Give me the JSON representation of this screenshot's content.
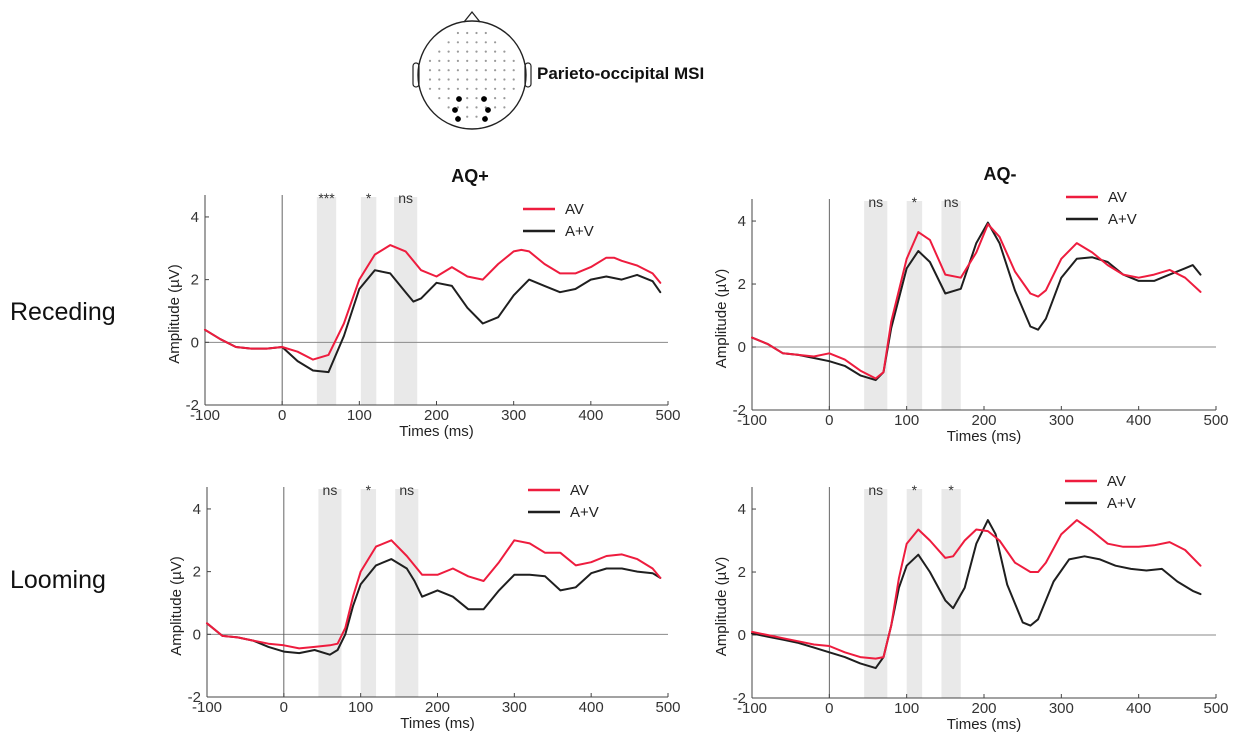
{
  "figure_title": "Parieto-occipital MSI",
  "column_titles": [
    "AQ+",
    "AQ-"
  ],
  "row_labels": [
    "Receding",
    "Looming"
  ],
  "colors": {
    "AV": "#ee1c3e",
    "A+V": "#1f1f1f",
    "window": "#e3e3e3",
    "baseline": "#8a8a8a"
  },
  "chart_data": [
    {
      "type": "line",
      "group": "AQ+",
      "condition": "Receding",
      "xlabel": "Times (ms)",
      "ylabel": "Amplitude (µV)",
      "xlim": [
        -100,
        500
      ],
      "ylim": [
        -2,
        4.7
      ],
      "xticks": [
        -100,
        0,
        100,
        200,
        300,
        400,
        500
      ],
      "yticks": [
        -2,
        0,
        2,
        4
      ],
      "windows": [
        {
          "x0": 45,
          "x1": 70,
          "label": "***"
        },
        {
          "x0": 102,
          "x1": 122,
          "label": "*"
        },
        {
          "x0": 145,
          "x1": 175,
          "label": "ns"
        }
      ],
      "legend": [
        "AV",
        "A+V"
      ],
      "series": [
        {
          "name": "AV",
          "x": [
            -100,
            -80,
            -60,
            -40,
            -20,
            0,
            20,
            40,
            60,
            80,
            100,
            120,
            140,
            160,
            180,
            200,
            220,
            240,
            260,
            280,
            300,
            310,
            320,
            340,
            360,
            380,
            400,
            420,
            430,
            440,
            460,
            480,
            490
          ],
          "y": [
            0.4,
            0.1,
            -0.15,
            -0.2,
            -0.2,
            -0.15,
            -0.3,
            -0.55,
            -0.4,
            0.6,
            2.0,
            2.8,
            3.1,
            2.9,
            2.3,
            2.1,
            2.4,
            2.1,
            2.0,
            2.5,
            2.9,
            2.95,
            2.9,
            2.5,
            2.2,
            2.2,
            2.4,
            2.7,
            2.7,
            2.6,
            2.45,
            2.2,
            1.9
          ]
        },
        {
          "name": "A+V",
          "x": [
            -100,
            -80,
            -60,
            -40,
            -20,
            0,
            20,
            40,
            60,
            80,
            100,
            120,
            140,
            160,
            170,
            180,
            200,
            220,
            240,
            260,
            280,
            300,
            320,
            340,
            360,
            380,
            400,
            420,
            440,
            460,
            480,
            490
          ],
          "y": [
            0.4,
            0.1,
            -0.15,
            -0.2,
            -0.2,
            -0.15,
            -0.6,
            -0.9,
            -0.95,
            0.2,
            1.7,
            2.3,
            2.2,
            1.6,
            1.3,
            1.4,
            1.9,
            1.8,
            1.1,
            0.6,
            0.8,
            1.5,
            2.0,
            1.8,
            1.6,
            1.7,
            2.0,
            2.1,
            2.0,
            2.15,
            1.95,
            1.6
          ]
        }
      ]
    },
    {
      "type": "line",
      "group": "AQ-",
      "condition": "Receding",
      "xlabel": "Times (ms)",
      "ylabel": "Amplitude (µV)",
      "xlim": [
        -100,
        500
      ],
      "ylim": [
        -2,
        4.7
      ],
      "xticks": [
        -100,
        0,
        100,
        200,
        300,
        400,
        500
      ],
      "yticks": [
        -2,
        0,
        2,
        4
      ],
      "windows": [
        {
          "x0": 45,
          "x1": 75,
          "label": "ns"
        },
        {
          "x0": 100,
          "x1": 120,
          "label": "*"
        },
        {
          "x0": 145,
          "x1": 170,
          "label": "ns"
        }
      ],
      "legend": [
        "AV",
        "A+V"
      ],
      "series": [
        {
          "name": "AV",
          "x": [
            -100,
            -80,
            -60,
            -40,
            -20,
            0,
            20,
            40,
            60,
            70,
            80,
            100,
            115,
            130,
            150,
            170,
            190,
            205,
            220,
            240,
            260,
            270,
            280,
            300,
            320,
            340,
            360,
            380,
            400,
            420,
            440,
            460,
            480
          ],
          "y": [
            0.3,
            0.1,
            -0.2,
            -0.25,
            -0.3,
            -0.2,
            -0.4,
            -0.75,
            -1.0,
            -0.8,
            0.8,
            2.8,
            3.65,
            3.4,
            2.3,
            2.2,
            3.0,
            3.9,
            3.5,
            2.4,
            1.7,
            1.6,
            1.8,
            2.8,
            3.3,
            3.0,
            2.6,
            2.3,
            2.2,
            2.3,
            2.45,
            2.2,
            1.75
          ]
        },
        {
          "name": "A+V",
          "x": [
            -100,
            -80,
            -60,
            -40,
            -20,
            0,
            20,
            40,
            60,
            70,
            80,
            100,
            115,
            130,
            150,
            170,
            190,
            205,
            220,
            240,
            260,
            270,
            280,
            300,
            320,
            340,
            360,
            380,
            400,
            420,
            440,
            460,
            470,
            480
          ],
          "y": [
            0.3,
            0.1,
            -0.2,
            -0.25,
            -0.35,
            -0.45,
            -0.6,
            -0.9,
            -1.05,
            -0.8,
            0.6,
            2.5,
            3.05,
            2.7,
            1.7,
            1.85,
            3.3,
            3.95,
            3.3,
            1.8,
            0.65,
            0.55,
            0.9,
            2.2,
            2.8,
            2.85,
            2.7,
            2.3,
            2.1,
            2.1,
            2.3,
            2.5,
            2.6,
            2.3
          ]
        }
      ]
    },
    {
      "type": "line",
      "group": "AQ+",
      "condition": "Looming",
      "xlabel": "Times (ms)",
      "ylabel": "Amplitude (µV)",
      "xlim": [
        -100,
        500
      ],
      "ylim": [
        -2,
        4.7
      ],
      "xticks": [
        -100,
        0,
        100,
        200,
        300,
        400,
        500
      ],
      "yticks": [
        -2,
        0,
        2,
        4
      ],
      "windows": [
        {
          "x0": 45,
          "x1": 75,
          "label": "ns"
        },
        {
          "x0": 100,
          "x1": 120,
          "label": "*"
        },
        {
          "x0": 145,
          "x1": 175,
          "label": "ns"
        }
      ],
      "legend": [
        "AV",
        "A+V"
      ],
      "series": [
        {
          "name": "AV",
          "x": [
            -100,
            -80,
            -60,
            -40,
            -20,
            0,
            20,
            40,
            60,
            70,
            80,
            90,
            100,
            120,
            140,
            160,
            180,
            200,
            220,
            240,
            260,
            280,
            300,
            320,
            340,
            360,
            380,
            400,
            420,
            440,
            460,
            480,
            490
          ],
          "y": [
            0.35,
            -0.05,
            -0.1,
            -0.2,
            -0.3,
            -0.35,
            -0.45,
            -0.4,
            -0.35,
            -0.3,
            0.2,
            1.2,
            2.0,
            2.8,
            3.0,
            2.5,
            1.9,
            1.9,
            2.1,
            1.85,
            1.7,
            2.3,
            3.0,
            2.9,
            2.6,
            2.6,
            2.2,
            2.3,
            2.5,
            2.55,
            2.4,
            2.1,
            1.8
          ]
        },
        {
          "name": "A+V",
          "x": [
            -100,
            -80,
            -60,
            -40,
            -20,
            0,
            20,
            40,
            60,
            70,
            80,
            90,
            100,
            120,
            140,
            160,
            170,
            180,
            200,
            220,
            240,
            260,
            280,
            300,
            320,
            340,
            360,
            380,
            400,
            420,
            440,
            460,
            480,
            490
          ],
          "y": [
            0.35,
            -0.05,
            -0.1,
            -0.2,
            -0.4,
            -0.55,
            -0.6,
            -0.5,
            -0.65,
            -0.5,
            0.0,
            0.9,
            1.6,
            2.2,
            2.4,
            2.1,
            1.7,
            1.2,
            1.4,
            1.2,
            0.8,
            0.8,
            1.4,
            1.9,
            1.9,
            1.85,
            1.4,
            1.5,
            1.95,
            2.1,
            2.1,
            2.0,
            1.95,
            1.8
          ]
        }
      ]
    },
    {
      "type": "line",
      "group": "AQ-",
      "condition": "Looming",
      "xlabel": "Times (ms)",
      "ylabel": "Amplitude (µV)",
      "xlim": [
        -100,
        500
      ],
      "ylim": [
        -2,
        4.7
      ],
      "xticks": [
        -100,
        0,
        100,
        200,
        300,
        400,
        500
      ],
      "yticks": [
        -2,
        0,
        2,
        4
      ],
      "windows": [
        {
          "x0": 45,
          "x1": 75,
          "label": "ns"
        },
        {
          "x0": 100,
          "x1": 120,
          "label": "*"
        },
        {
          "x0": 145,
          "x1": 170,
          "label": "*"
        }
      ],
      "legend": [
        "AV",
        "A+V"
      ],
      "series": [
        {
          "name": "AV",
          "x": [
            -100,
            -80,
            -60,
            -40,
            -20,
            0,
            20,
            40,
            60,
            70,
            80,
            90,
            100,
            115,
            130,
            150,
            160,
            175,
            190,
            205,
            220,
            240,
            260,
            270,
            280,
            300,
            320,
            340,
            360,
            380,
            400,
            420,
            440,
            460,
            480
          ],
          "y": [
            0.1,
            0.0,
            -0.1,
            -0.2,
            -0.3,
            -0.35,
            -0.55,
            -0.7,
            -0.75,
            -0.7,
            0.3,
            1.8,
            2.9,
            3.35,
            3.0,
            2.45,
            2.5,
            3.0,
            3.35,
            3.3,
            3.0,
            2.3,
            2.0,
            2.0,
            2.3,
            3.2,
            3.65,
            3.3,
            2.9,
            2.8,
            2.8,
            2.85,
            2.95,
            2.7,
            2.2
          ]
        },
        {
          "name": "A+V",
          "x": [
            -100,
            -80,
            -60,
            -40,
            -20,
            0,
            20,
            40,
            60,
            70,
            80,
            90,
            100,
            115,
            130,
            150,
            160,
            175,
            190,
            205,
            215,
            230,
            250,
            260,
            270,
            290,
            310,
            330,
            350,
            370,
            390,
            410,
            430,
            450,
            470,
            480
          ],
          "y": [
            0.05,
            -0.05,
            -0.15,
            -0.25,
            -0.4,
            -0.55,
            -0.7,
            -0.9,
            -1.05,
            -0.7,
            0.3,
            1.5,
            2.2,
            2.55,
            2.0,
            1.1,
            0.85,
            1.5,
            2.9,
            3.65,
            3.2,
            1.6,
            0.4,
            0.3,
            0.5,
            1.7,
            2.4,
            2.5,
            2.4,
            2.2,
            2.1,
            2.05,
            2.1,
            1.7,
            1.4,
            1.3
          ]
        }
      ]
    }
  ]
}
